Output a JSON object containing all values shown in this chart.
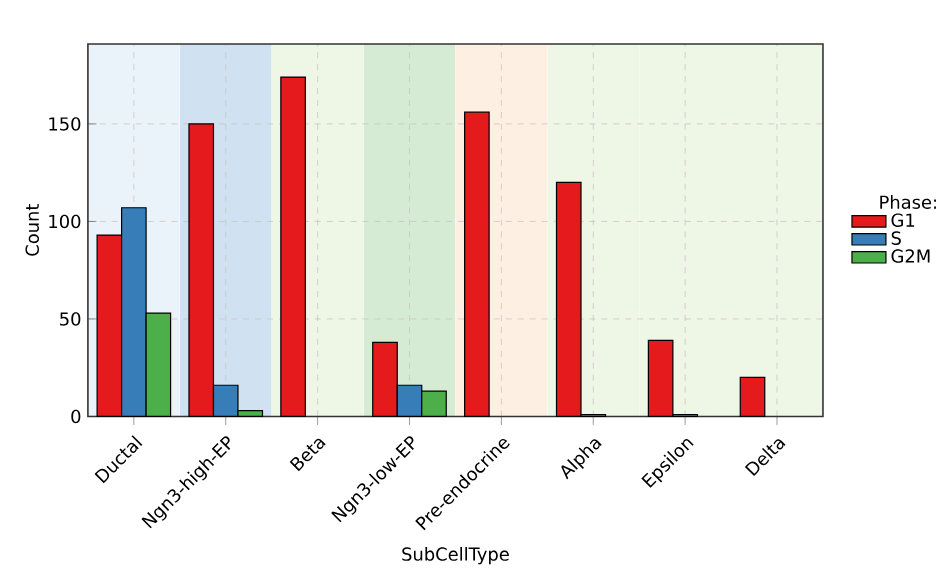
{
  "chart_data": {
    "type": "bar",
    "xlabel": "SubCellType",
    "ylabel": "Count",
    "legend_title": "Phase:",
    "categories": [
      "Ductal",
      "Ngn3-high-EP",
      "Beta",
      "Ngn3-low-EP",
      "Pre-endocrine",
      "Alpha",
      "Epsilon",
      "Delta"
    ],
    "series": [
      {
        "name": "G1",
        "color": "#e41a1c",
        "values": [
          93,
          150,
          174,
          38,
          156,
          120,
          39,
          20
        ]
      },
      {
        "name": "S",
        "color": "#377eb8",
        "values": [
          107,
          16,
          0,
          16,
          0,
          1,
          1,
          0
        ]
      },
      {
        "name": "G2M",
        "color": "#4daf4a",
        "values": [
          53,
          3,
          0,
          13,
          0,
          0,
          0,
          0
        ]
      }
    ],
    "ylim": [
      0,
      191
    ],
    "yticks": [
      0,
      50,
      100,
      150
    ],
    "grid": true,
    "legend": "right",
    "bands": [
      {
        "axis": "x",
        "from": "Ductal",
        "to": "Ductal",
        "color": "#eaf3f9"
      },
      {
        "axis": "x",
        "from": "Ngn3-high-EP",
        "to": "Ngn3-high-EP",
        "color": "#d0e2f1"
      },
      {
        "axis": "x",
        "from": "Beta",
        "to": "Beta",
        "color": "#eef6e6"
      },
      {
        "axis": "x",
        "from": "Ngn3-low-EP",
        "to": "Ngn3-low-EP",
        "color": "#d6ebd3"
      },
      {
        "axis": "x",
        "from": "Pre-endocrine",
        "to": "Pre-endocrine",
        "color": "#fdf0e3"
      },
      {
        "axis": "x",
        "from": "Alpha",
        "to": "Alpha",
        "color": "#eef6e6"
      },
      {
        "axis": "x",
        "from": "Epsilon",
        "to": "Epsilon",
        "color": "#eef6e6"
      },
      {
        "axis": "x",
        "from": "Delta",
        "to": "Delta",
        "color": "#eef6e6"
      }
    ]
  }
}
